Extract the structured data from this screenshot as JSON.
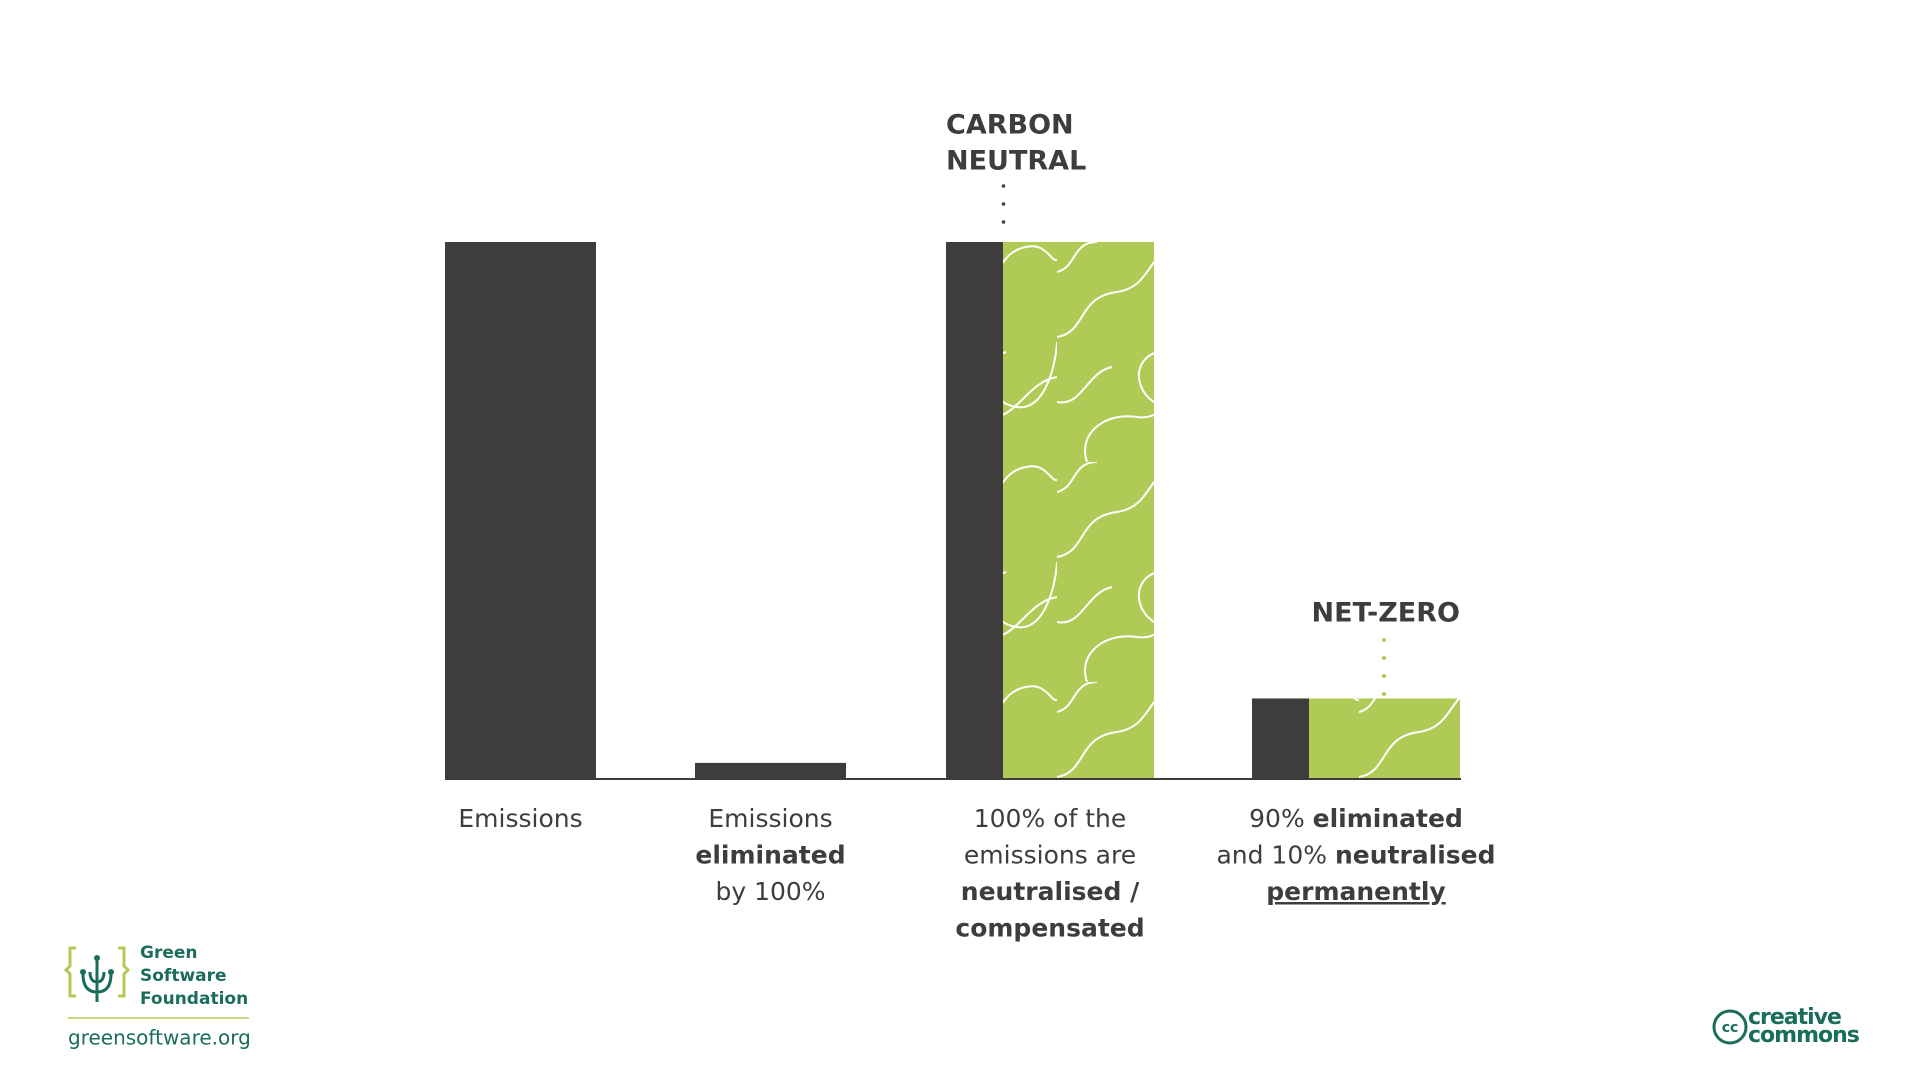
{
  "chart_data": {
    "type": "bar",
    "categories": [
      [
        [
          {
            "text": "Emissions"
          }
        ]
      ],
      [
        [
          {
            "text": "Emissions"
          }
        ],
        [
          {
            "text": "eliminated",
            "bold": true
          }
        ],
        [
          {
            "text": "by 100%"
          }
        ]
      ],
      [
        [
          {
            "text": "100% of the"
          }
        ],
        [
          {
            "text": "emissions are"
          }
        ],
        [
          {
            "text": "neutralised /",
            "bold": true
          }
        ],
        [
          {
            "text": "compensated",
            "bold": true
          }
        ]
      ],
      [
        [
          {
            "text": "90% "
          },
          {
            "text": "eliminated",
            "bold": true
          }
        ],
        [
          {
            "text": "and 10% "
          },
          {
            "text": "neutralised",
            "bold": true
          }
        ],
        [
          {
            "text": "permanently",
            "bold": true,
            "underline": true
          }
        ]
      ]
    ],
    "series": [
      {
        "color": "#3d3d3d",
        "values": [
          100,
          3,
          100,
          15
        ]
      },
      {
        "color": "#b0cb55",
        "values": [
          null,
          null,
          100,
          15
        ]
      }
    ],
    "annotations": [
      {
        "lines": [
          "CARBON",
          "NEUTRAL"
        ]
      },
      {
        "lines": [
          "NET-ZERO"
        ]
      }
    ]
  },
  "footer": {
    "logo_lines": [
      "Green",
      "Software",
      "Foundation"
    ],
    "url": "greensoftware.org",
    "license_lines": [
      "creative",
      "commons"
    ]
  }
}
